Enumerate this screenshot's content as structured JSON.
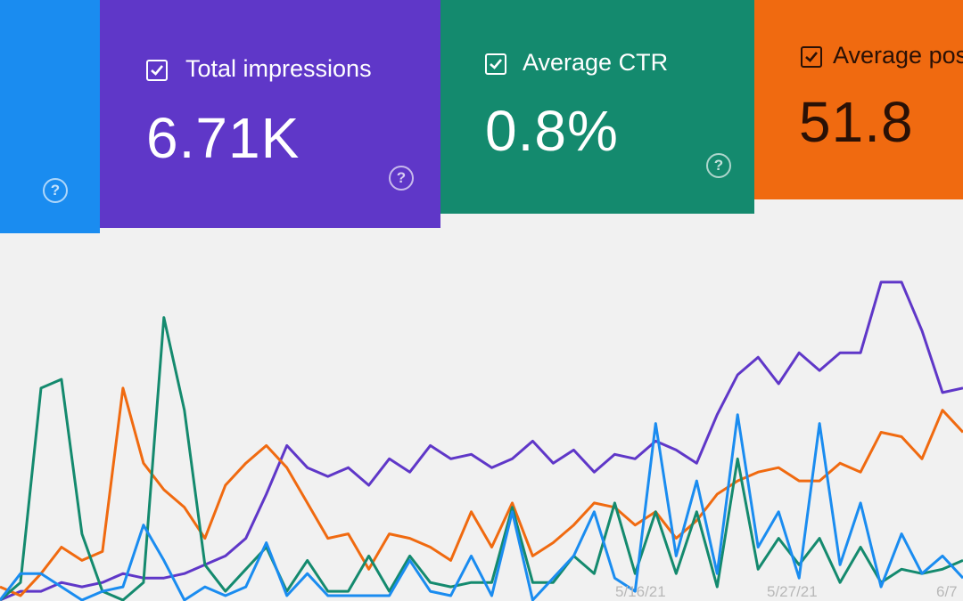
{
  "cards": {
    "impressions": {
      "label": "Total impressions",
      "value": "6.71K",
      "color": "#5f37c8"
    },
    "ctr": {
      "label": "Average CTR",
      "value": "0.8%",
      "color": "#148a6e"
    },
    "position": {
      "label": "Average positi",
      "value": "51.8",
      "color": "#f06a10"
    },
    "clicks": {
      "color": "#1a8cf0"
    },
    "help_glyph": "?"
  },
  "chart_data": {
    "type": "line",
    "xlabel": "",
    "ylabel": "",
    "grid": false,
    "x_tick_labels": [
      "5/16/21",
      "5/27/21",
      "6/7"
    ],
    "series": [
      {
        "key": "impressions",
        "color": "#5f37c8",
        "values": [
          0,
          2,
          2,
          4,
          3,
          4,
          6,
          5,
          5,
          6,
          8,
          10,
          14,
          24,
          35,
          30,
          28,
          30,
          26,
          32,
          29,
          35,
          32,
          33,
          30,
          32,
          36,
          31,
          34,
          29,
          33,
          32,
          36,
          34,
          31,
          42,
          51,
          55,
          49,
          56,
          52,
          56,
          56,
          72,
          72,
          61,
          47,
          48
        ]
      },
      {
        "key": "position",
        "color": "#f06a10",
        "values": [
          3,
          1,
          6,
          12,
          9,
          11,
          48,
          31,
          25,
          21,
          14,
          26,
          31,
          35,
          30,
          22,
          14,
          15,
          7,
          15,
          14,
          12,
          9,
          20,
          12,
          22,
          10,
          13,
          17,
          22,
          21,
          17,
          20,
          14,
          18,
          24,
          27,
          29,
          30,
          27,
          27,
          31,
          29,
          38,
          37,
          32,
          43,
          38
        ]
      },
      {
        "key": "ctr",
        "color": "#148a6e",
        "values": [
          0,
          4,
          48,
          50,
          15,
          2,
          0,
          4,
          64,
          43,
          8,
          2,
          7,
          12,
          2,
          9,
          2,
          2,
          10,
          2,
          10,
          4,
          3,
          4,
          4,
          21,
          4,
          4,
          10,
          6,
          22,
          6,
          20,
          6,
          20,
          3,
          32,
          7,
          14,
          8,
          14,
          4,
          12,
          4,
          7,
          6,
          7,
          9
        ]
      },
      {
        "key": "clicks",
        "color": "#1a8cf0",
        "values": [
          0,
          6,
          6,
          3,
          0,
          2,
          3,
          17,
          9,
          0,
          3,
          1,
          3,
          13,
          1,
          6,
          1,
          1,
          1,
          1,
          9,
          2,
          1,
          10,
          1,
          20,
          0,
          5,
          10,
          20,
          5,
          2,
          40,
          10,
          27,
          6,
          42,
          12,
          20,
          5,
          40,
          8,
          22,
          3,
          15,
          6,
          10,
          5
        ]
      }
    ]
  }
}
